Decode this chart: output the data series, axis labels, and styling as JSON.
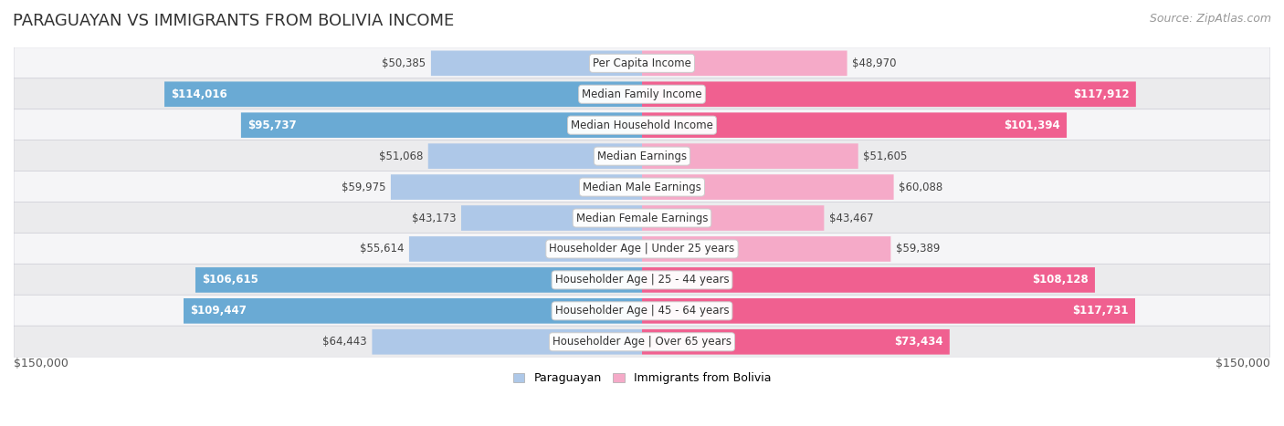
{
  "title": "PARAGUAYAN VS IMMIGRANTS FROM BOLIVIA INCOME",
  "source": "Source: ZipAtlas.com",
  "categories": [
    "Per Capita Income",
    "Median Family Income",
    "Median Household Income",
    "Median Earnings",
    "Median Male Earnings",
    "Median Female Earnings",
    "Householder Age | Under 25 years",
    "Householder Age | 25 - 44 years",
    "Householder Age | 45 - 64 years",
    "Householder Age | Over 65 years"
  ],
  "paraguayan_values": [
    50385,
    114016,
    95737,
    51068,
    59975,
    43173,
    55614,
    106615,
    109447,
    64443
  ],
  "bolivia_values": [
    48970,
    117912,
    101394,
    51605,
    60088,
    43467,
    59389,
    108128,
    117731,
    73434
  ],
  "paraguayan_color_light": "#aec8e8",
  "paraguayan_color_dark": "#6aaad4",
  "bolivia_color_light": "#f5aac8",
  "bolivia_color_dark": "#f06090",
  "row_bg_even": "#f5f5f7",
  "row_bg_odd": "#ebebed",
  "max_value": 150000,
  "x_label_left": "$150,000",
  "x_label_right": "$150,000",
  "legend_paraguayan": "Paraguayan",
  "legend_bolivia": "Immigrants from Bolivia",
  "title_fontsize": 13,
  "source_fontsize": 9,
  "bar_label_fontsize": 8.5,
  "category_fontsize": 8.5,
  "axis_fontsize": 9,
  "inside_label_threshold": 0.45
}
